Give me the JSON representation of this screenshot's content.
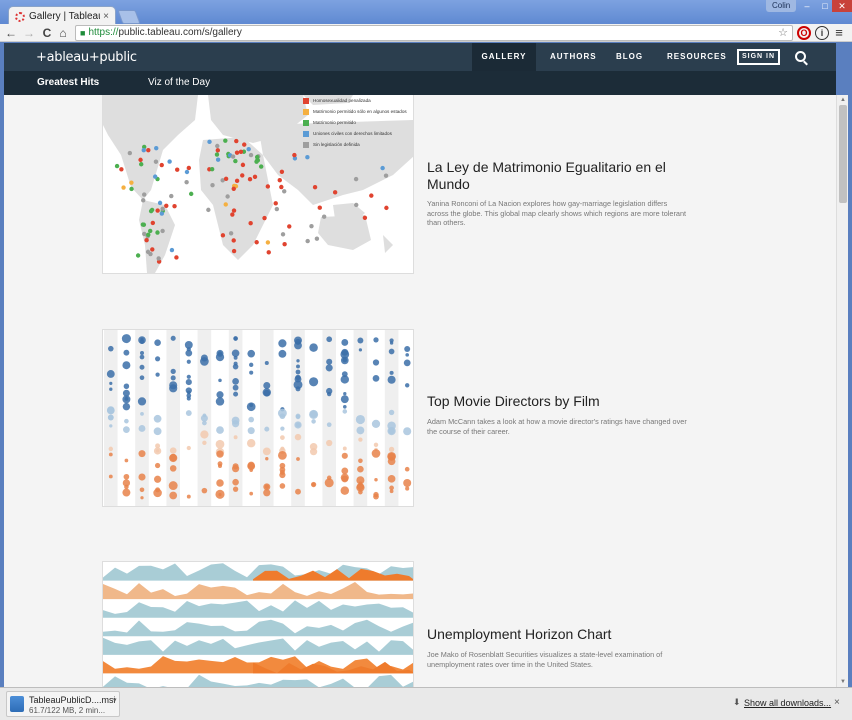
{
  "browser": {
    "tab_title": "Gallery | Tableau Pub",
    "tab_close": "×",
    "url_scheme": "https://",
    "url_rest": "public.tableau.com/s/gallery",
    "profile_name": "Colin",
    "window_min": "–",
    "window_max": "□",
    "window_close": "✕",
    "back": "←",
    "forward": "→",
    "reload": "C",
    "home": "⌂",
    "star": "☆",
    "menu": "≡",
    "ext_opera": "O",
    "ext_info": "i",
    "lock": "🔒"
  },
  "site": {
    "logo": "+ableau+public",
    "nav": [
      "GALLERY",
      "AUTHORS",
      "BLOG",
      "RESOURCES"
    ],
    "sign_in": "SIGN IN",
    "subnav": [
      "Greatest Hits",
      "Viz of the Day"
    ]
  },
  "cards": [
    {
      "title": "La Ley de Matrimonio Egualitario en el Mundo",
      "description": "Yanina Ronconi of La Nacion explores how gay-marriage legislation differs across the globe. This global map clearly shows which regions are more tolerant than others.",
      "legend": [
        {
          "label": "Homosexualidad penalizada",
          "color": "#e0432f"
        },
        {
          "label": "Matrimonio permitido sólo en algunos estados",
          "color": "#f5b041"
        },
        {
          "label": "Matrimonio permitido",
          "color": "#4caf50"
        },
        {
          "label": "Uniones civiles con derechos limitados",
          "color": "#5b9bd5"
        },
        {
          "label": "Sin legislación definida",
          "color": "#9e9e9e"
        }
      ]
    },
    {
      "title": "Top Movie Directors by Film",
      "description": "Adam McCann takes a look at how a movie director's ratings have changed over the course of their career."
    },
    {
      "title": "Unemployment Horizon Chart",
      "description": "Joe Mako of Rosenblatt Securities visualizes a state-level examination of unemployment rates over time in the United States."
    }
  ],
  "download": {
    "file_name": "TableauPublicD....msi",
    "status": "61.7/122 MB, 2 min...",
    "show_all": "Show all downloads...",
    "close": "×"
  },
  "colors": {
    "header": "#2b3e4e",
    "subnav": "#1c2c38",
    "blue_dot": "#3b6ea8",
    "orange_dot": "#e8834a"
  }
}
